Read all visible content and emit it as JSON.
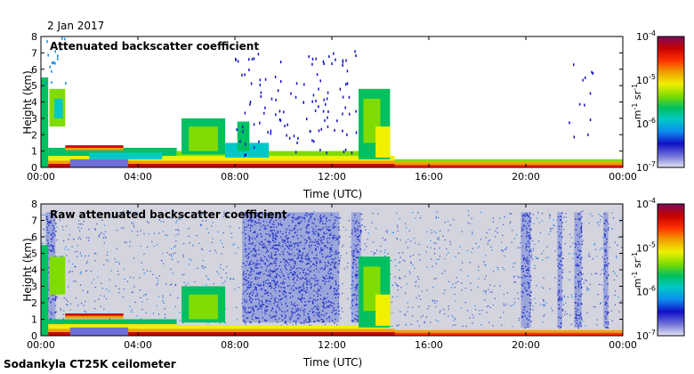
{
  "date": "2 Jan 2017",
  "footer": "Sodankyla CT25K ceilometer",
  "chart_data": [
    {
      "type": "heatmap",
      "title": "Attenuated backscatter coefficient",
      "xlabel": "Time (UTC)",
      "ylabel": "Height (km)",
      "xticks": [
        "00:00",
        "04:00",
        "08:00",
        "12:00",
        "16:00",
        "20:00",
        "00:00"
      ],
      "xlim_hours": [
        0,
        24
      ],
      "yticks": [
        0,
        1,
        2,
        3,
        4,
        5,
        6,
        7,
        8
      ],
      "ylim": [
        0,
        8
      ],
      "colorbar": {
        "scale": "log",
        "min_label": "10^-7",
        "max_label": "10^-4",
        "labels": [
          {
            "base": "10",
            "exp": "-4",
            "value": 0.0001
          },
          {
            "base": "10",
            "exp": "-5",
            "value": 1e-05
          },
          {
            "base": "10",
            "exp": "-6",
            "value": 1e-06
          },
          {
            "base": "10",
            "exp": "-7",
            "value": 1e-07
          }
        ],
        "units_base": "m",
        "units_exp1": "-1",
        "units_mid": " sr",
        "units_exp2": "-1",
        "colors": [
          "#e4e4f4",
          "#6f6fd8",
          "#1010c8",
          "#0c8cf0",
          "#00c8c8",
          "#00c060",
          "#80dc00",
          "#f0f000",
          "#f0a000",
          "#ff3000",
          "#c80000",
          "#7a0a5a"
        ]
      },
      "noise": false,
      "features": [
        {
          "kind": "layer",
          "t0": 0.3,
          "t1": 14.6,
          "h0": 0.0,
          "h1": 0.22,
          "color": "#c80000"
        },
        {
          "kind": "layer",
          "t0": 14.6,
          "t1": 24.0,
          "h0": 0.0,
          "h1": 0.18,
          "color": "#ff3000"
        },
        {
          "kind": "layer",
          "t0": 0.3,
          "t1": 14.6,
          "h0": 0.22,
          "h1": 0.42,
          "color": "#f0a000"
        },
        {
          "kind": "layer",
          "t0": 14.6,
          "t1": 24.0,
          "h0": 0.18,
          "h1": 0.34,
          "color": "#f0a000"
        },
        {
          "kind": "layer",
          "t0": 0.3,
          "t1": 14.6,
          "h0": 0.42,
          "h1": 0.7,
          "color": "#f0f000"
        },
        {
          "kind": "layer",
          "t0": 14.6,
          "t1": 24.0,
          "h0": 0.34,
          "h1": 0.5,
          "color": "#80dc00"
        },
        {
          "kind": "layer",
          "t0": 0.3,
          "t1": 5.6,
          "h0": 0.7,
          "h1": 1.2,
          "color": "#00c060"
        },
        {
          "kind": "layer",
          "t0": 5.6,
          "t1": 14.2,
          "h0": 0.7,
          "h1": 1.0,
          "color": "#80dc00"
        },
        {
          "kind": "blob",
          "t0": 1.2,
          "t1": 3.6,
          "h0": 0.0,
          "h1": 0.5,
          "color": "#6f6fd8"
        },
        {
          "kind": "blob",
          "t0": 2.0,
          "t1": 5.0,
          "h0": 0.5,
          "h1": 0.9,
          "color": "#00c8c8"
        },
        {
          "kind": "band",
          "t0": 1.0,
          "t1": 3.4,
          "h0": 1.2,
          "h1": 1.35,
          "color": "#c80000"
        },
        {
          "kind": "band",
          "t0": 1.0,
          "t1": 3.4,
          "h0": 1.05,
          "h1": 1.2,
          "color": "#f0a000"
        },
        {
          "kind": "column",
          "t0": 0.0,
          "t1": 0.3,
          "h0": 0.0,
          "h1": 5.5,
          "color": "#00c060"
        },
        {
          "kind": "column",
          "t0": 0.35,
          "t1": 1.0,
          "h0": 2.5,
          "h1": 4.8,
          "color": "#80dc00"
        },
        {
          "kind": "column",
          "t0": 0.55,
          "t1": 0.9,
          "h0": 3.0,
          "h1": 4.2,
          "color": "#00c8c8"
        },
        {
          "kind": "column",
          "t0": 5.8,
          "t1": 7.6,
          "h0": 0.8,
          "h1": 3.0,
          "color": "#00c060"
        },
        {
          "kind": "column",
          "t0": 6.1,
          "t1": 7.3,
          "h0": 1.0,
          "h1": 2.5,
          "color": "#80dc00"
        },
        {
          "kind": "column",
          "t0": 7.6,
          "t1": 9.4,
          "h0": 0.6,
          "h1": 1.5,
          "color": "#00c8c8"
        },
        {
          "kind": "column",
          "t0": 8.1,
          "t1": 8.6,
          "h0": 1.0,
          "h1": 2.8,
          "color": "#00c060"
        },
        {
          "kind": "column",
          "t0": 13.1,
          "t1": 14.4,
          "h0": 0.5,
          "h1": 4.8,
          "color": "#00c060"
        },
        {
          "kind": "column",
          "t0": 13.3,
          "t1": 14.0,
          "h0": 1.5,
          "h1": 4.2,
          "color": "#80dc00"
        },
        {
          "kind": "column",
          "t0": 13.8,
          "t1": 14.4,
          "h0": 0.6,
          "h1": 2.5,
          "color": "#f0f000"
        },
        {
          "kind": "speckle",
          "t0": 8.0,
          "t1": 13.0,
          "h0": 0.8,
          "h1": 7.2,
          "color": "#1010c8",
          "count": 120
        },
        {
          "kind": "speckle",
          "t0": 0.0,
          "t1": 1.0,
          "h0": 5.0,
          "h1": 8.0,
          "color": "#0c8cf0",
          "count": 20
        },
        {
          "kind": "speckle",
          "t0": 21.5,
          "t1": 22.8,
          "h0": 1.5,
          "h1": 7.0,
          "color": "#1010c8",
          "count": 12
        }
      ]
    },
    {
      "type": "heatmap",
      "title": "Raw attenuated backscatter coefficient",
      "xlabel": "Time (UTC)",
      "ylabel": "Height (km)",
      "xticks": [
        "00:00",
        "04:00",
        "08:00",
        "12:00",
        "16:00",
        "20:00",
        "00:00"
      ],
      "xlim_hours": [
        0,
        24
      ],
      "yticks": [
        0,
        1,
        2,
        3,
        4,
        5,
        6,
        7,
        8
      ],
      "ylim": [
        0,
        8
      ],
      "colorbar": {
        "scale": "log",
        "min_label": "10^-7",
        "max_label": "10^-4",
        "labels": [
          {
            "base": "10",
            "exp": "-4",
            "value": 0.0001
          },
          {
            "base": "10",
            "exp": "-5",
            "value": 1e-05
          },
          {
            "base": "10",
            "exp": "-6",
            "value": 1e-06
          },
          {
            "base": "10",
            "exp": "-7",
            "value": 1e-07
          }
        ],
        "units_base": "m",
        "units_exp1": "-1",
        "units_mid": " sr",
        "units_exp2": "-1",
        "colors": [
          "#e4e4f4",
          "#6f6fd8",
          "#1010c8",
          "#0c8cf0",
          "#00c8c8",
          "#00c060",
          "#80dc00",
          "#f0f000",
          "#f0a000",
          "#ff3000",
          "#c80000",
          "#7a0a5a"
        ]
      },
      "noise": true,
      "features": [
        {
          "kind": "dense",
          "t0": 8.3,
          "t1": 12.3,
          "h0": 0.8,
          "h1": 7.5,
          "color": "#2030c8"
        },
        {
          "kind": "dense",
          "t0": 12.8,
          "t1": 13.2,
          "h0": 0.8,
          "h1": 7.5,
          "color": "#2030c8"
        },
        {
          "kind": "dense",
          "t0": 0.2,
          "t1": 0.6,
          "h0": 0.8,
          "h1": 7.5,
          "color": "#2030c8"
        },
        {
          "kind": "dense",
          "t0": 19.8,
          "t1": 20.2,
          "h0": 0.5,
          "h1": 7.5,
          "color": "#2030c8"
        },
        {
          "kind": "dense",
          "t0": 21.3,
          "t1": 21.5,
          "h0": 0.5,
          "h1": 7.5,
          "color": "#2030c8"
        },
        {
          "kind": "dense",
          "t0": 22.0,
          "t1": 22.3,
          "h0": 0.5,
          "h1": 7.5,
          "color": "#2030c8"
        },
        {
          "kind": "dense",
          "t0": 23.2,
          "t1": 23.4,
          "h0": 0.5,
          "h1": 7.5,
          "color": "#2030c8"
        },
        {
          "kind": "layer",
          "t0": 0.3,
          "t1": 14.6,
          "h0": 0.0,
          "h1": 0.22,
          "color": "#c80000"
        },
        {
          "kind": "layer",
          "t0": 14.6,
          "t1": 24.0,
          "h0": 0.0,
          "h1": 0.18,
          "color": "#ff3000"
        },
        {
          "kind": "layer",
          "t0": 0.3,
          "t1": 14.6,
          "h0": 0.22,
          "h1": 0.42,
          "color": "#f0a000"
        },
        {
          "kind": "layer",
          "t0": 14.6,
          "t1": 24.0,
          "h0": 0.18,
          "h1": 0.34,
          "color": "#f0a000"
        },
        {
          "kind": "layer",
          "t0": 0.3,
          "t1": 5.6,
          "h0": 0.42,
          "h1": 0.7,
          "color": "#f0f000"
        },
        {
          "kind": "layer",
          "t0": 5.6,
          "t1": 14.2,
          "h0": 0.42,
          "h1": 0.62,
          "color": "#f0f000"
        },
        {
          "kind": "layer",
          "t0": 0.3,
          "t1": 5.6,
          "h0": 0.7,
          "h1": 1.0,
          "color": "#00c060"
        },
        {
          "kind": "blob",
          "t0": 1.2,
          "t1": 3.6,
          "h0": 0.0,
          "h1": 0.5,
          "color": "#6f6fd8"
        },
        {
          "kind": "band",
          "t0": 1.0,
          "t1": 3.4,
          "h0": 1.2,
          "h1": 1.35,
          "color": "#c80000"
        },
        {
          "kind": "band",
          "t0": 1.0,
          "t1": 3.4,
          "h0": 1.05,
          "h1": 1.2,
          "color": "#f0a000"
        },
        {
          "kind": "column",
          "t0": 0.0,
          "t1": 0.3,
          "h0": 0.0,
          "h1": 5.5,
          "color": "#00c060"
        },
        {
          "kind": "column",
          "t0": 0.35,
          "t1": 1.0,
          "h0": 2.5,
          "h1": 4.8,
          "color": "#80dc00"
        },
        {
          "kind": "column",
          "t0": 5.8,
          "t1": 7.6,
          "h0": 0.8,
          "h1": 3.0,
          "color": "#00c060"
        },
        {
          "kind": "column",
          "t0": 6.1,
          "t1": 7.3,
          "h0": 1.0,
          "h1": 2.5,
          "color": "#80dc00"
        },
        {
          "kind": "column",
          "t0": 13.1,
          "t1": 14.4,
          "h0": 0.5,
          "h1": 4.8,
          "color": "#00c060"
        },
        {
          "kind": "column",
          "t0": 13.3,
          "t1": 14.0,
          "h0": 1.5,
          "h1": 4.2,
          "color": "#80dc00"
        },
        {
          "kind": "column",
          "t0": 13.8,
          "t1": 14.4,
          "h0": 0.6,
          "h1": 2.5,
          "color": "#f0f000"
        }
      ]
    }
  ]
}
